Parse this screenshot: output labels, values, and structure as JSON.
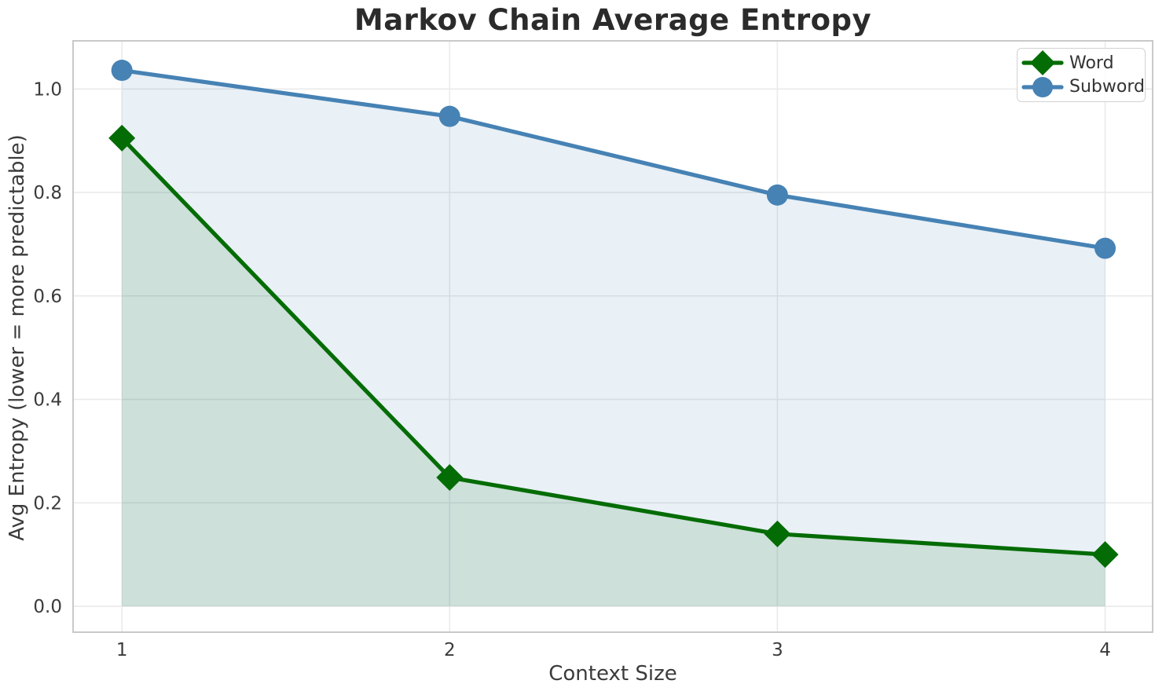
{
  "chart_data": {
    "type": "line",
    "title": "Markov Chain Average Entropy",
    "xlabel": "Context Size",
    "ylabel": "Avg Entropy (lower = more predictable)",
    "x": [
      1,
      2,
      3,
      4
    ],
    "x_tick_labels": [
      "1",
      "2",
      "3",
      "4"
    ],
    "y_tick_values": [
      0.0,
      0.2,
      0.4,
      0.6,
      0.8,
      1.0
    ],
    "y_tick_labels": [
      "0.0",
      "0.2",
      "0.4",
      "0.6",
      "0.8",
      "1.0"
    ],
    "xlim": [
      0.851,
      4.145
    ],
    "ylim": [
      -0.05,
      1.093
    ],
    "grid": true,
    "legend_position": "upper right",
    "area_fill_to": 0,
    "series": [
      {
        "name": "Word",
        "marker": "diamond",
        "color": "#046c04",
        "fill_opacity": 0.12,
        "values": [
          0.905,
          0.249,
          0.14,
          0.1
        ]
      },
      {
        "name": "Subword",
        "marker": "circle",
        "color": "#4682b4",
        "fill_opacity": 0.12,
        "values": [
          1.036,
          0.947,
          0.795,
          0.692
        ]
      }
    ]
  }
}
